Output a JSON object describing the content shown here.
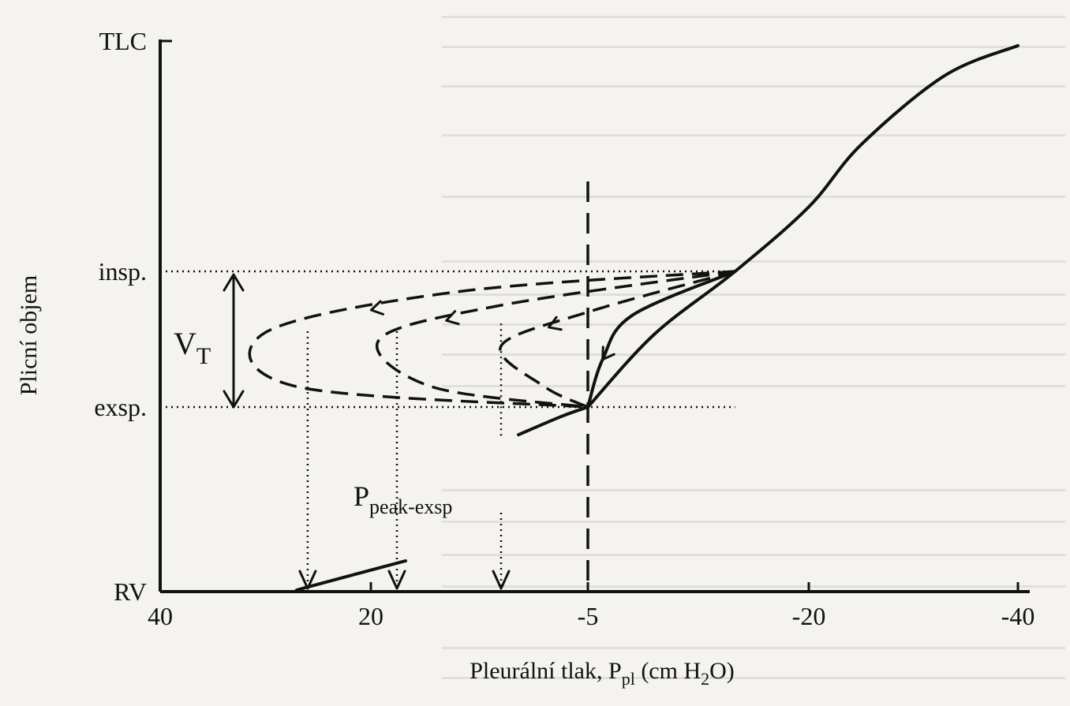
{
  "chart_data": {
    "type": "line",
    "xlabel": "Pleurální tlak, P",
    "xlabel_sub": "pl",
    "xlabel_unit_open": " (cm H",
    "xlabel_unit_sub": "2",
    "xlabel_unit_close": "O)",
    "ylabel": "Plicní objem",
    "x_axis_reversed": true,
    "x_ticks": [
      {
        "value": 40,
        "label": "40"
      },
      {
        "value": 20,
        "label": "20"
      },
      {
        "value": -5,
        "label": "-5"
      },
      {
        "value": -20,
        "label": "-20"
      },
      {
        "value": -40,
        "label": "-40"
      }
    ],
    "y_ticks": [
      {
        "value": 0,
        "label": "RV"
      },
      {
        "value": 60,
        "label": "exsp."
      },
      {
        "value": 80,
        "label": "insp."
      },
      {
        "value": 100,
        "label": "TLC"
      }
    ],
    "xlim": [
      40,
      -40
    ],
    "ylim": [
      0,
      100
    ],
    "annotations": {
      "tidal_volume_main": "V",
      "tidal_volume_sub": "T",
      "peak_pressure_main": "P",
      "peak_pressure_sub": "peak-exsp"
    },
    "series": [
      {
        "style": "solid",
        "points": [
          [
            -5,
            60
          ],
          [
            -9.5,
            70.7
          ],
          [
            -15,
            80
          ],
          [
            -20,
            85.6
          ],
          [
            -25,
            91
          ],
          [
            -33,
            97
          ],
          [
            -40,
            99.6
          ]
        ]
      },
      {
        "style": "solid",
        "points": [
          [
            -5,
            60
          ],
          [
            -2,
            57
          ],
          [
            3,
            51
          ]
        ]
      },
      {
        "style": "solid",
        "points": [
          [
            27,
            0.4
          ],
          [
            26,
            1.5
          ],
          [
            16,
            10
          ]
        ]
      },
      {
        "style": "solid",
        "points": [
          [
            -15,
            80
          ],
          [
            -8,
            73.5
          ],
          [
            -6,
            67
          ],
          [
            -5,
            60
          ]
        ]
      },
      {
        "style": "dashed",
        "points": [
          [
            -15,
            80
          ],
          [
            10,
            77
          ],
          [
            30,
            71
          ],
          [
            27,
            63
          ],
          [
            -5,
            60
          ]
        ]
      },
      {
        "style": "dashed",
        "points": [
          [
            -15,
            80
          ],
          [
            5,
            75
          ],
          [
            19,
            70
          ],
          [
            13,
            63
          ],
          [
            -5,
            60
          ]
        ]
      },
      {
        "style": "dashed",
        "points": [
          [
            -15,
            80
          ],
          [
            -5,
            74
          ],
          [
            5,
            69
          ],
          [
            0,
            63
          ],
          [
            -5,
            60
          ]
        ]
      }
    ],
    "reference_lines": [
      {
        "orientation": "horizontal",
        "y": 80,
        "style": "dotted"
      },
      {
        "orientation": "horizontal",
        "y": 60,
        "style": "dotted"
      },
      {
        "orientation": "vertical",
        "x": -5,
        "style": "dashed"
      }
    ],
    "projections": [
      {
        "x": 26,
        "from_y": 70,
        "to_y": 0
      },
      {
        "x": 17,
        "from_y": 70,
        "to_y": 0
      },
      {
        "x": 5,
        "from_y": 70,
        "to_y": 0
      }
    ],
    "grid": false
  }
}
